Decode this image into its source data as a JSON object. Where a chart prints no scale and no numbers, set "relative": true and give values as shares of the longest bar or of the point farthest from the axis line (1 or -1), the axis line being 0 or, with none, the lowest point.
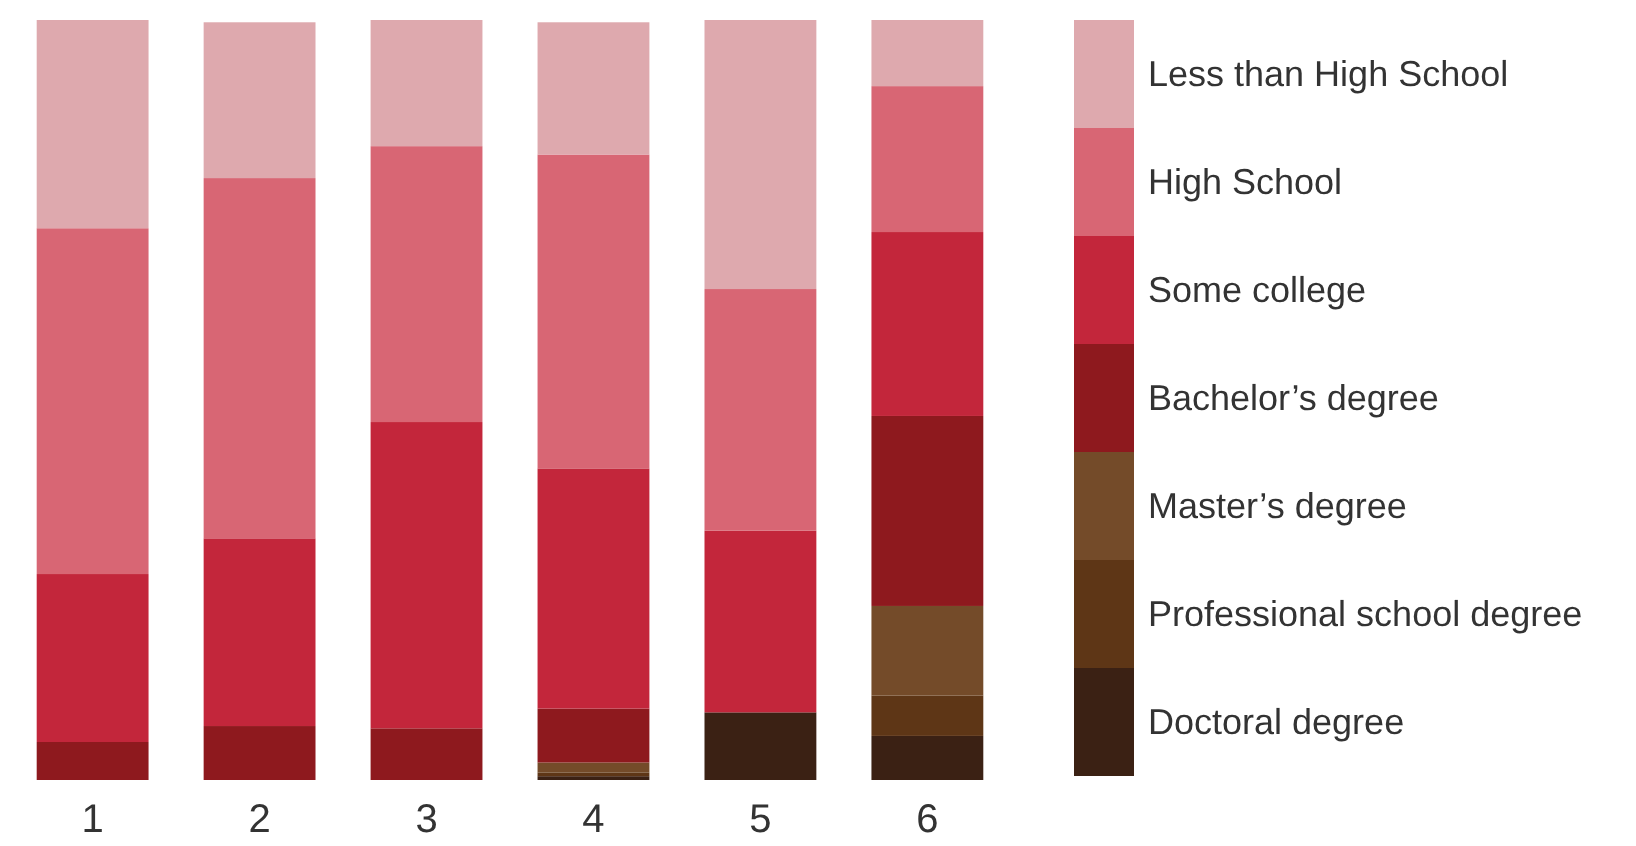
{
  "chart_data": {
    "type": "bar",
    "stacked": true,
    "relative": true,
    "legend": "right",
    "categories": [
      "1",
      "2",
      "3",
      "4",
      "5",
      "6"
    ],
    "series": [
      {
        "name": "Doctoral degree",
        "color": "#3b2114",
        "values": [
          0,
          0,
          0,
          0.005,
          0.089,
          0.058
        ]
      },
      {
        "name": "Professional school degree",
        "color": "#5e3616",
        "values": [
          0,
          0,
          0,
          0.005,
          0,
          0.053
        ]
      },
      {
        "name": "Master’s degree",
        "color": "#744b29",
        "values": [
          0,
          0,
          0,
          0.013,
          0,
          0.118
        ]
      },
      {
        "name": "Bachelor’s degree",
        "color": "#8e191e",
        "values": [
          0.05,
          0.071,
          0.068,
          0.071,
          0,
          0.25
        ]
      },
      {
        "name": "Some college",
        "color": "#c3263b",
        "values": [
          0.221,
          0.247,
          0.403,
          0.316,
          0.239,
          0.242
        ]
      },
      {
        "name": "High School",
        "color": "#d86674",
        "values": [
          0.455,
          0.474,
          0.363,
          0.413,
          0.318,
          0.192
        ]
      },
      {
        "name": "Less than High School",
        "color": "#dea9ae",
        "values": [
          0.274,
          0.205,
          0.166,
          0.174,
          0.354,
          0.087
        ]
      }
    ]
  }
}
